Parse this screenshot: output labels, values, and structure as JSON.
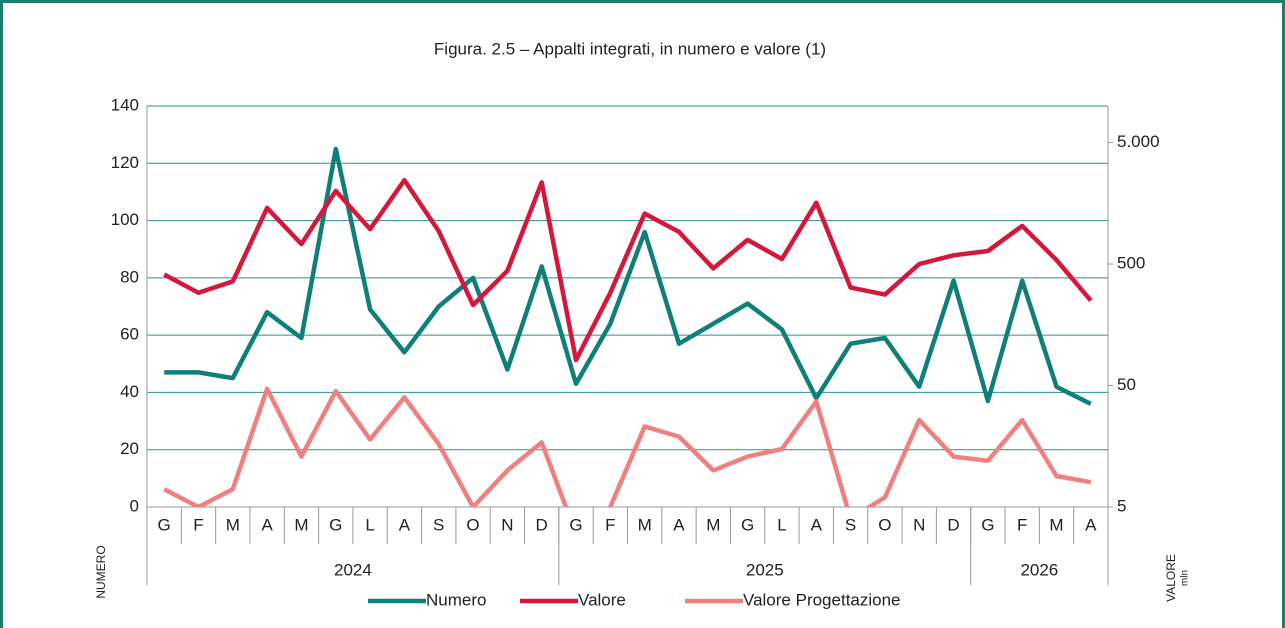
{
  "chart_data": {
    "type": "line",
    "title": "Figura. 2.5 – Appalti integrati, in numero e valore (1)",
    "y_label": "NUMERO",
    "y2_label": "VALORE",
    "y2_unit": "mln",
    "categories": [
      "G",
      "F",
      "M",
      "A",
      "M",
      "G",
      "L",
      "A",
      "S",
      "O",
      "N",
      "D",
      "G",
      "F",
      "M",
      "A",
      "M",
      "G",
      "L",
      "A",
      "S",
      "O",
      "N",
      "D",
      "G",
      "F",
      "M",
      "A"
    ],
    "year_groups": [
      {
        "label": "2024",
        "span": 12
      },
      {
        "label": "2025",
        "span": 12
      },
      {
        "label": "2026",
        "span": 4
      }
    ],
    "ylim": [
      0,
      140
    ],
    "yticks": [
      0,
      20,
      40,
      60,
      80,
      100,
      120,
      140
    ],
    "y2lim": [
      5,
      10000
    ],
    "y2_log": true,
    "y2ticks": [
      5,
      50,
      500,
      {
        "value": 5000,
        "label": "5.000"
      }
    ],
    "grid": true,
    "legend": "bottom",
    "series": [
      {
        "name": "Numero",
        "color": "#0e8079",
        "values": [
          47,
          47,
          45,
          68,
          59,
          125,
          69,
          54,
          70,
          80,
          48,
          84,
          43,
          64,
          96,
          57,
          64,
          71,
          62,
          38,
          57,
          59,
          42,
          79,
          37,
          79,
          42,
          36
        ]
      },
      {
        "name": "Valore",
        "color": "#d6173c",
        "axis": "y2",
        "values": [
          410,
          290,
          360,
          1450,
          730,
          2000,
          970,
          2450,
          935,
          230,
          440,
          2350,
          81,
          290,
          1300,
          920,
          460,
          790,
          550,
          1600,
          320,
          280,
          500,
          590,
          640,
          1030,
          540,
          250
        ]
      },
      {
        "name": "Valore Progettazione",
        "color": "#ef8080",
        "axis": "y2",
        "values": [
          7,
          5,
          7,
          47,
          13,
          45,
          18,
          40,
          16.5,
          5,
          10,
          17,
          3,
          5,
          23,
          19,
          10,
          13,
          15,
          37,
          4,
          6,
          26,
          13,
          12,
          26,
          9,
          8
        ]
      }
    ]
  }
}
